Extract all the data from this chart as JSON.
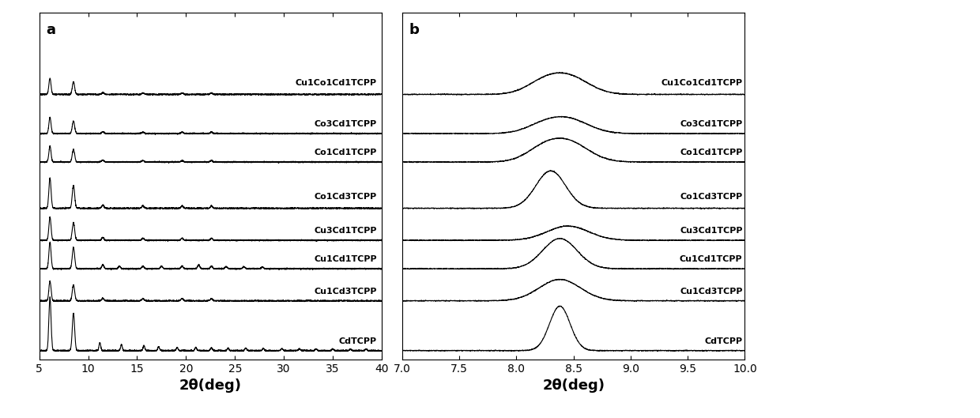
{
  "panel_a": {
    "xlabel": "2θ(deg)",
    "label": "a",
    "xlim": [
      5,
      40
    ],
    "xticks": [
      5,
      10,
      15,
      20,
      25,
      30,
      35,
      40
    ],
    "series_labels": [
      "Cu1Co1Cd1TCPP",
      "Co3Cd1TCPP",
      "Co1Cd1TCPP",
      "Co1Cd3TCPP",
      "Cu3Cd1TCPP",
      "Cu1Cd1TCPP",
      "Cu1Cd3TCPP",
      "CdTCPP"
    ],
    "offsets": [
      7.2,
      6.1,
      5.3,
      4.0,
      3.1,
      2.3,
      1.4,
      0.0
    ],
    "label_offsets": [
      0.22,
      0.15,
      0.15,
      0.22,
      0.15,
      0.15,
      0.15,
      0.15
    ],
    "peak1_pos": [
      6.1,
      6.1,
      6.1,
      6.1,
      6.1,
      6.1,
      6.1,
      6.1
    ],
    "peak2_pos": [
      8.5,
      8.5,
      8.5,
      8.5,
      8.5,
      8.5,
      8.5,
      8.5
    ],
    "peak1_height": [
      0.45,
      0.45,
      0.45,
      0.85,
      0.65,
      0.75,
      0.55,
      1.5
    ],
    "peak2_height": [
      0.35,
      0.35,
      0.35,
      0.65,
      0.5,
      0.6,
      0.45,
      1.05
    ]
  },
  "panel_b": {
    "xlabel": "2θ(deg)",
    "label": "b",
    "xlim": [
      7.0,
      10.0
    ],
    "xticks": [
      7.0,
      7.5,
      8.0,
      8.5,
      9.0,
      9.5,
      10.0
    ],
    "series_labels": [
      "Cu1Co1Cd1TCPP",
      "Co3Cd1TCPP",
      "Co1Cd1TCPP",
      "Co1Cd3TCPP",
      "Cu3Cd1TCPP",
      "Cu1Cd1TCPP",
      "Cu1Cd3TCPP",
      "CdTCPP"
    ],
    "offsets": [
      7.2,
      6.1,
      5.3,
      4.0,
      3.1,
      2.3,
      1.4,
      0.0
    ],
    "label_offsets": [
      0.22,
      0.15,
      0.15,
      0.22,
      0.15,
      0.15,
      0.15,
      0.15
    ],
    "peak_pos": [
      8.45,
      8.45,
      8.45,
      8.3,
      8.45,
      8.38,
      8.38,
      8.38
    ],
    "peak_height": [
      0.5,
      0.4,
      0.55,
      1.05,
      0.4,
      0.85,
      0.6,
      1.25
    ],
    "peak_width": [
      0.18,
      0.18,
      0.18,
      0.13,
      0.18,
      0.15,
      0.18,
      0.09
    ],
    "has_shoulder": [
      true,
      true,
      true,
      false,
      false,
      false,
      false,
      false
    ],
    "shoulder_pos": [
      8.22,
      8.22,
      8.22,
      0,
      0,
      0,
      0,
      0
    ],
    "shoulder_height": [
      0.25,
      0.18,
      0.28,
      0,
      0,
      0,
      0,
      0
    ],
    "shoulder_width": [
      0.15,
      0.15,
      0.15,
      0,
      0,
      0,
      0,
      0
    ]
  },
  "line_color": "#000000",
  "background_color": "#ffffff",
  "fontsize_label": 13,
  "fontsize_tick": 10,
  "fontsize_annot": 8,
  "fontsize_panel": 13
}
